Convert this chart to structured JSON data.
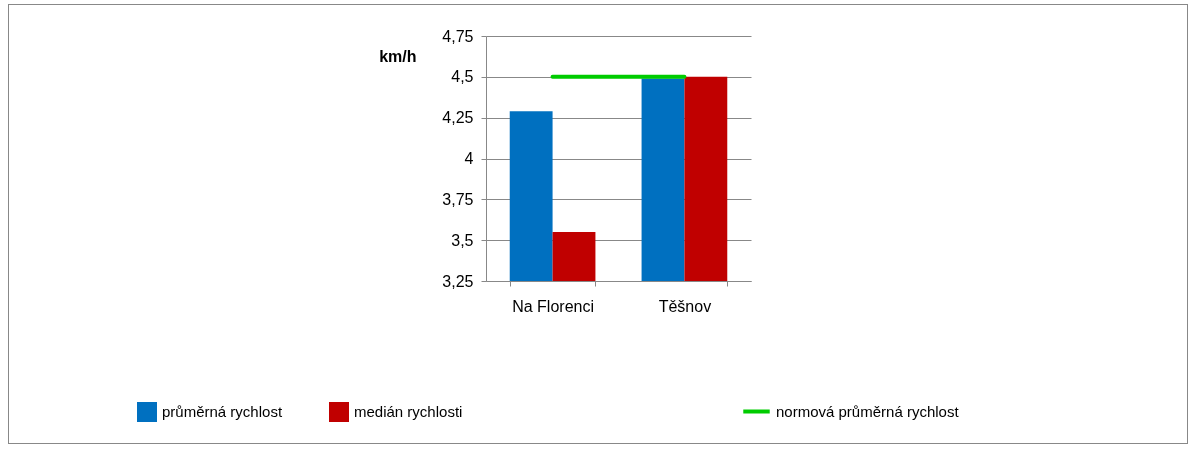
{
  "chart_data": {
    "type": "bar",
    "ylabel": "km/h",
    "categories": [
      "Na Florenci",
      "Těšnov"
    ],
    "series": [
      {
        "name": "průměrná rychlost",
        "color": "#0070c0",
        "values": [
          4.29,
          4.49
        ]
      },
      {
        "name": "medián rychlosti",
        "color": "#c00000",
        "values": [
          3.55,
          4.5
        ]
      },
      {
        "name": "normová průměrná rychlost",
        "color": "#00cc00",
        "type": "line",
        "values": [
          4.5,
          4.5
        ]
      }
    ],
    "ylim": [
      3.25,
      4.75
    ],
    "yticks": [
      {
        "value": 3.25,
        "label": "3,25"
      },
      {
        "value": 3.5,
        "label": "3,5"
      },
      {
        "value": 3.75,
        "label": "3,75"
      },
      4,
      {
        "value": 4.25,
        "label": "4,25"
      },
      {
        "value": 4.5,
        "label": "4,5"
      },
      {
        "value": 4.75,
        "label": "4,75"
      }
    ],
    "grid": "y",
    "legend": "bottom"
  }
}
